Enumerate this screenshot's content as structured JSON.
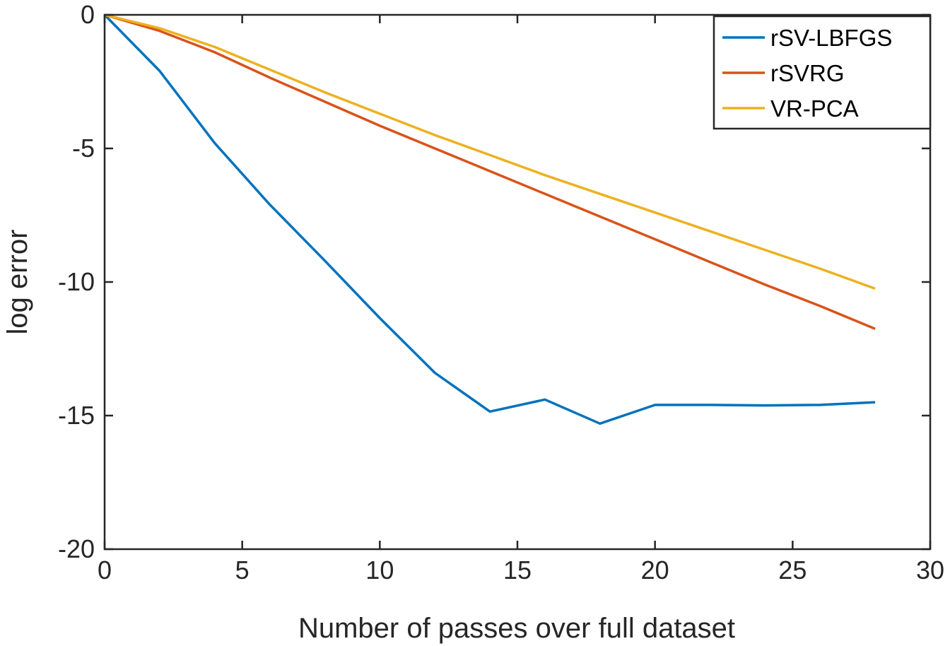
{
  "chart_data": {
    "type": "line",
    "title": "",
    "xlabel": "Number of passes over full dataset",
    "ylabel": "log error",
    "xlim": [
      0,
      30
    ],
    "ylim": [
      -20,
      0
    ],
    "xticks": [
      0,
      5,
      10,
      15,
      20,
      25,
      30
    ],
    "yticks": [
      0,
      -5,
      -10,
      -15,
      -20
    ],
    "x_tick_labels": [
      "0",
      "5",
      "10",
      "15",
      "20",
      "25",
      "30"
    ],
    "y_tick_labels": [
      "0",
      "-5",
      "-10",
      "-15",
      "-20"
    ],
    "grid": false,
    "legend_position": "top-right",
    "series": [
      {
        "name": "rSV-LBFGS",
        "color": "#0072BD",
        "x": [
          0,
          2,
          4,
          6,
          8,
          10,
          12,
          14,
          16,
          18,
          20,
          22,
          24,
          26,
          28
        ],
        "y": [
          0,
          -2.1,
          -4.8,
          -7.1,
          -9.2,
          -11.35,
          -13.4,
          -14.85,
          -14.4,
          -15.3,
          -14.6,
          -14.6,
          -14.62,
          -14.6,
          -14.5
        ]
      },
      {
        "name": "rSVRG",
        "color": "#D95319",
        "x": [
          0,
          2,
          4,
          6,
          8,
          10,
          12,
          14,
          16,
          18,
          20,
          22,
          24,
          26,
          28
        ],
        "y": [
          0,
          -0.6,
          -1.4,
          -2.35,
          -3.25,
          -4.15,
          -5.0,
          -5.85,
          -6.7,
          -7.55,
          -8.4,
          -9.25,
          -10.1,
          -10.9,
          -11.75
        ]
      },
      {
        "name": "VR-PCA",
        "color": "#EDB120",
        "x": [
          0,
          2,
          4,
          6,
          8,
          10,
          12,
          14,
          16,
          18,
          20,
          22,
          24,
          26,
          28
        ],
        "y": [
          0,
          -0.5,
          -1.2,
          -2.05,
          -2.9,
          -3.7,
          -4.5,
          -5.25,
          -6.0,
          -6.7,
          -7.4,
          -8.1,
          -8.8,
          -9.5,
          -10.25
        ]
      }
    ]
  }
}
